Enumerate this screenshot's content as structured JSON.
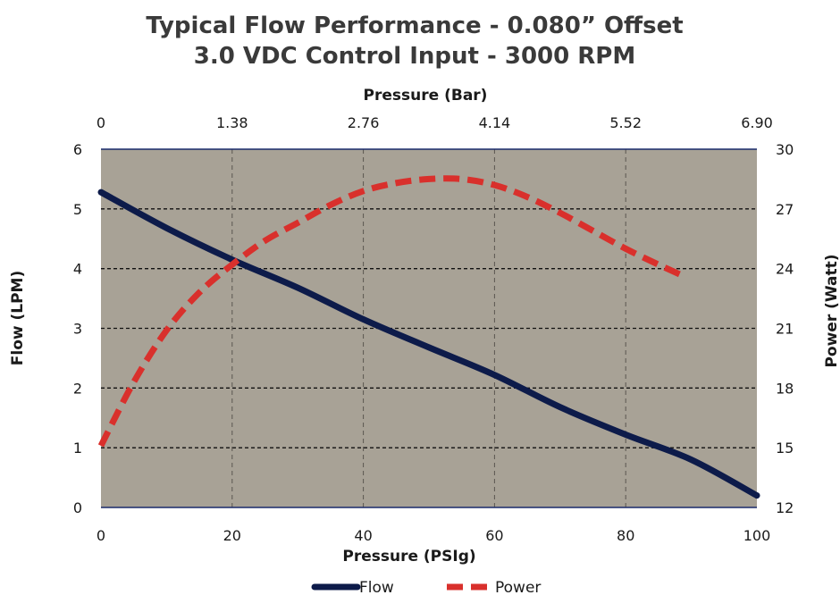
{
  "chart_data": {
    "type": "line",
    "title": "Typical Flow Performance - 0.080” Offset",
    "subtitle": "3.0 VDC Control Input - 3000 RPM",
    "xlabel": "Pressure (PSIg)",
    "x2label": "Pressure (Bar)",
    "ylabel": "Flow (LPM)",
    "y2label": "Power (Watt)",
    "xlim": [
      0,
      100
    ],
    "ylim": [
      0,
      6
    ],
    "y2lim": [
      12,
      30
    ],
    "x_ticks": [
      "0",
      "20",
      "40",
      "60",
      "80",
      "100"
    ],
    "x2_ticks": [
      "0",
      "1.38",
      "2.76",
      "4.14",
      "5.52",
      "6.90"
    ],
    "y_ticks": [
      "0",
      "1",
      "2",
      "3",
      "4",
      "5",
      "6"
    ],
    "y2_ticks": [
      "12",
      "15",
      "18",
      "21",
      "24",
      "27",
      "30"
    ],
    "grid": true,
    "plot_background": "#a8a296",
    "legend_position": "bottom-center",
    "series": [
      {
        "name": "Flow",
        "axis": "left",
        "color": "#0d1b4a",
        "style": "solid",
        "x": [
          0,
          10,
          20,
          30,
          40,
          50,
          60,
          70,
          80,
          90,
          100
        ],
        "y": [
          5.28,
          4.68,
          4.15,
          3.68,
          3.15,
          2.68,
          2.22,
          1.68,
          1.22,
          0.8,
          0.2
        ]
      },
      {
        "name": "Power",
        "axis": "right",
        "color": "#d9302c",
        "style": "dashed",
        "x": [
          0,
          5,
          10,
          15,
          20,
          25,
          30,
          35,
          40,
          45,
          50,
          55,
          60,
          65,
          70,
          75,
          80,
          85,
          89
        ],
        "y": [
          15.1,
          18.3,
          20.9,
          22.8,
          24.2,
          25.4,
          26.3,
          27.2,
          27.9,
          28.3,
          28.5,
          28.5,
          28.2,
          27.6,
          26.8,
          25.9,
          25.0,
          24.2,
          23.6
        ]
      }
    ]
  }
}
